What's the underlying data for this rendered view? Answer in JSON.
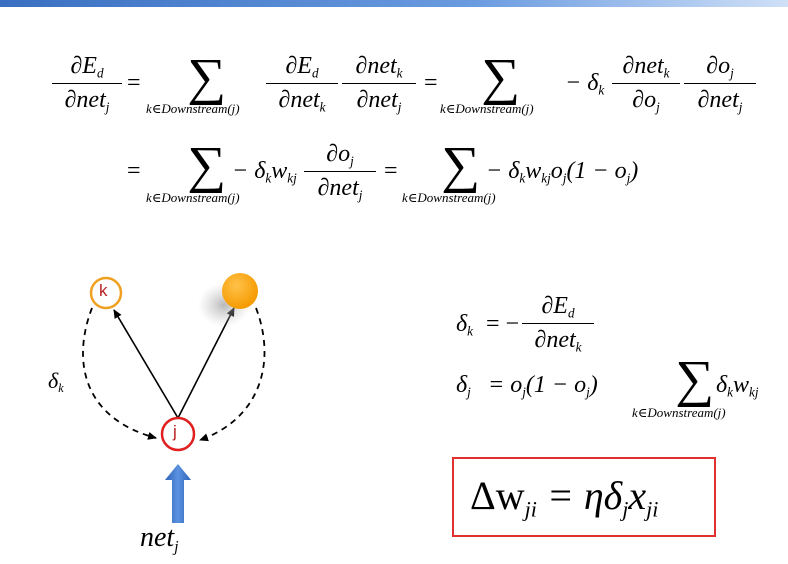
{
  "equations": {
    "row1": {
      "lhs_num": "∂E",
      "lhs_num_sub": "d",
      "lhs_den": "∂net",
      "lhs_den_sub": "j",
      "eq": "=",
      "sum_glyph": "∑",
      "range": "k∈Downstream(j)",
      "f1_num": "∂E",
      "f1_num_sub": "d",
      "f1_den": "∂net",
      "f1_den_sub": "k",
      "f2_num": "∂net",
      "f2_num_sub": "k",
      "f2_den": "∂net",
      "f2_den_sub": "j",
      "minus_delta": "− δ",
      "minus_delta_sub": "k",
      "f3_num": "∂net",
      "f3_num_sub": "k",
      "f3_den": "∂o",
      "f3_den_sub": "j",
      "f4_num": "∂o",
      "f4_num_sub": "j",
      "f4_den": "∂net",
      "f4_den_sub": "j"
    },
    "row2": {
      "term1_a": "− δ",
      "term1_sub_k": "k",
      "term1_w": "w",
      "term1_w_sub": "kj",
      "term2": "− δ",
      "term2_sub_k": "k",
      "term2_w": "w",
      "term2_w_sub": "kj",
      "term2_o": "o",
      "term2_o_sub": "j",
      "term2_paren": "(1 − o",
      "term2_paren_sub": "j",
      "term2_close": ")"
    },
    "delta_k": {
      "lhs": "δ",
      "lhs_sub": "k",
      "eq": "= −",
      "num": "∂E",
      "num_sub": "d",
      "den": "∂net",
      "den_sub": "k"
    },
    "delta_j": {
      "lhs": "δ",
      "lhs_sub": "j",
      "eq": "= o",
      "o_sub": "j",
      "paren": "(1 − o",
      "paren_sub": "j",
      "close": ")",
      "term": "δ",
      "term_sub": "k",
      "w": "w",
      "w_sub": "kj",
      "range": "k∈Downstream(j)"
    },
    "update_rule": {
      "delta_w": "Δw",
      "dw_sub": "ji",
      "eq": "= ηδ",
      "delta_sub": "j",
      "x": "x",
      "x_sub": "ji"
    }
  },
  "diagram": {
    "node_k_label": "k",
    "node_j_label": "j",
    "delta_label": "δ",
    "delta_label_sub": "k",
    "input_label": "net",
    "input_label_sub": "j",
    "colors": {
      "node_k_stroke": "#f0a020",
      "node_j_stroke": "#e02020",
      "orange_node": "#ffa500",
      "input_arrow": "#3a78d0",
      "update_box": "#e03030"
    }
  }
}
